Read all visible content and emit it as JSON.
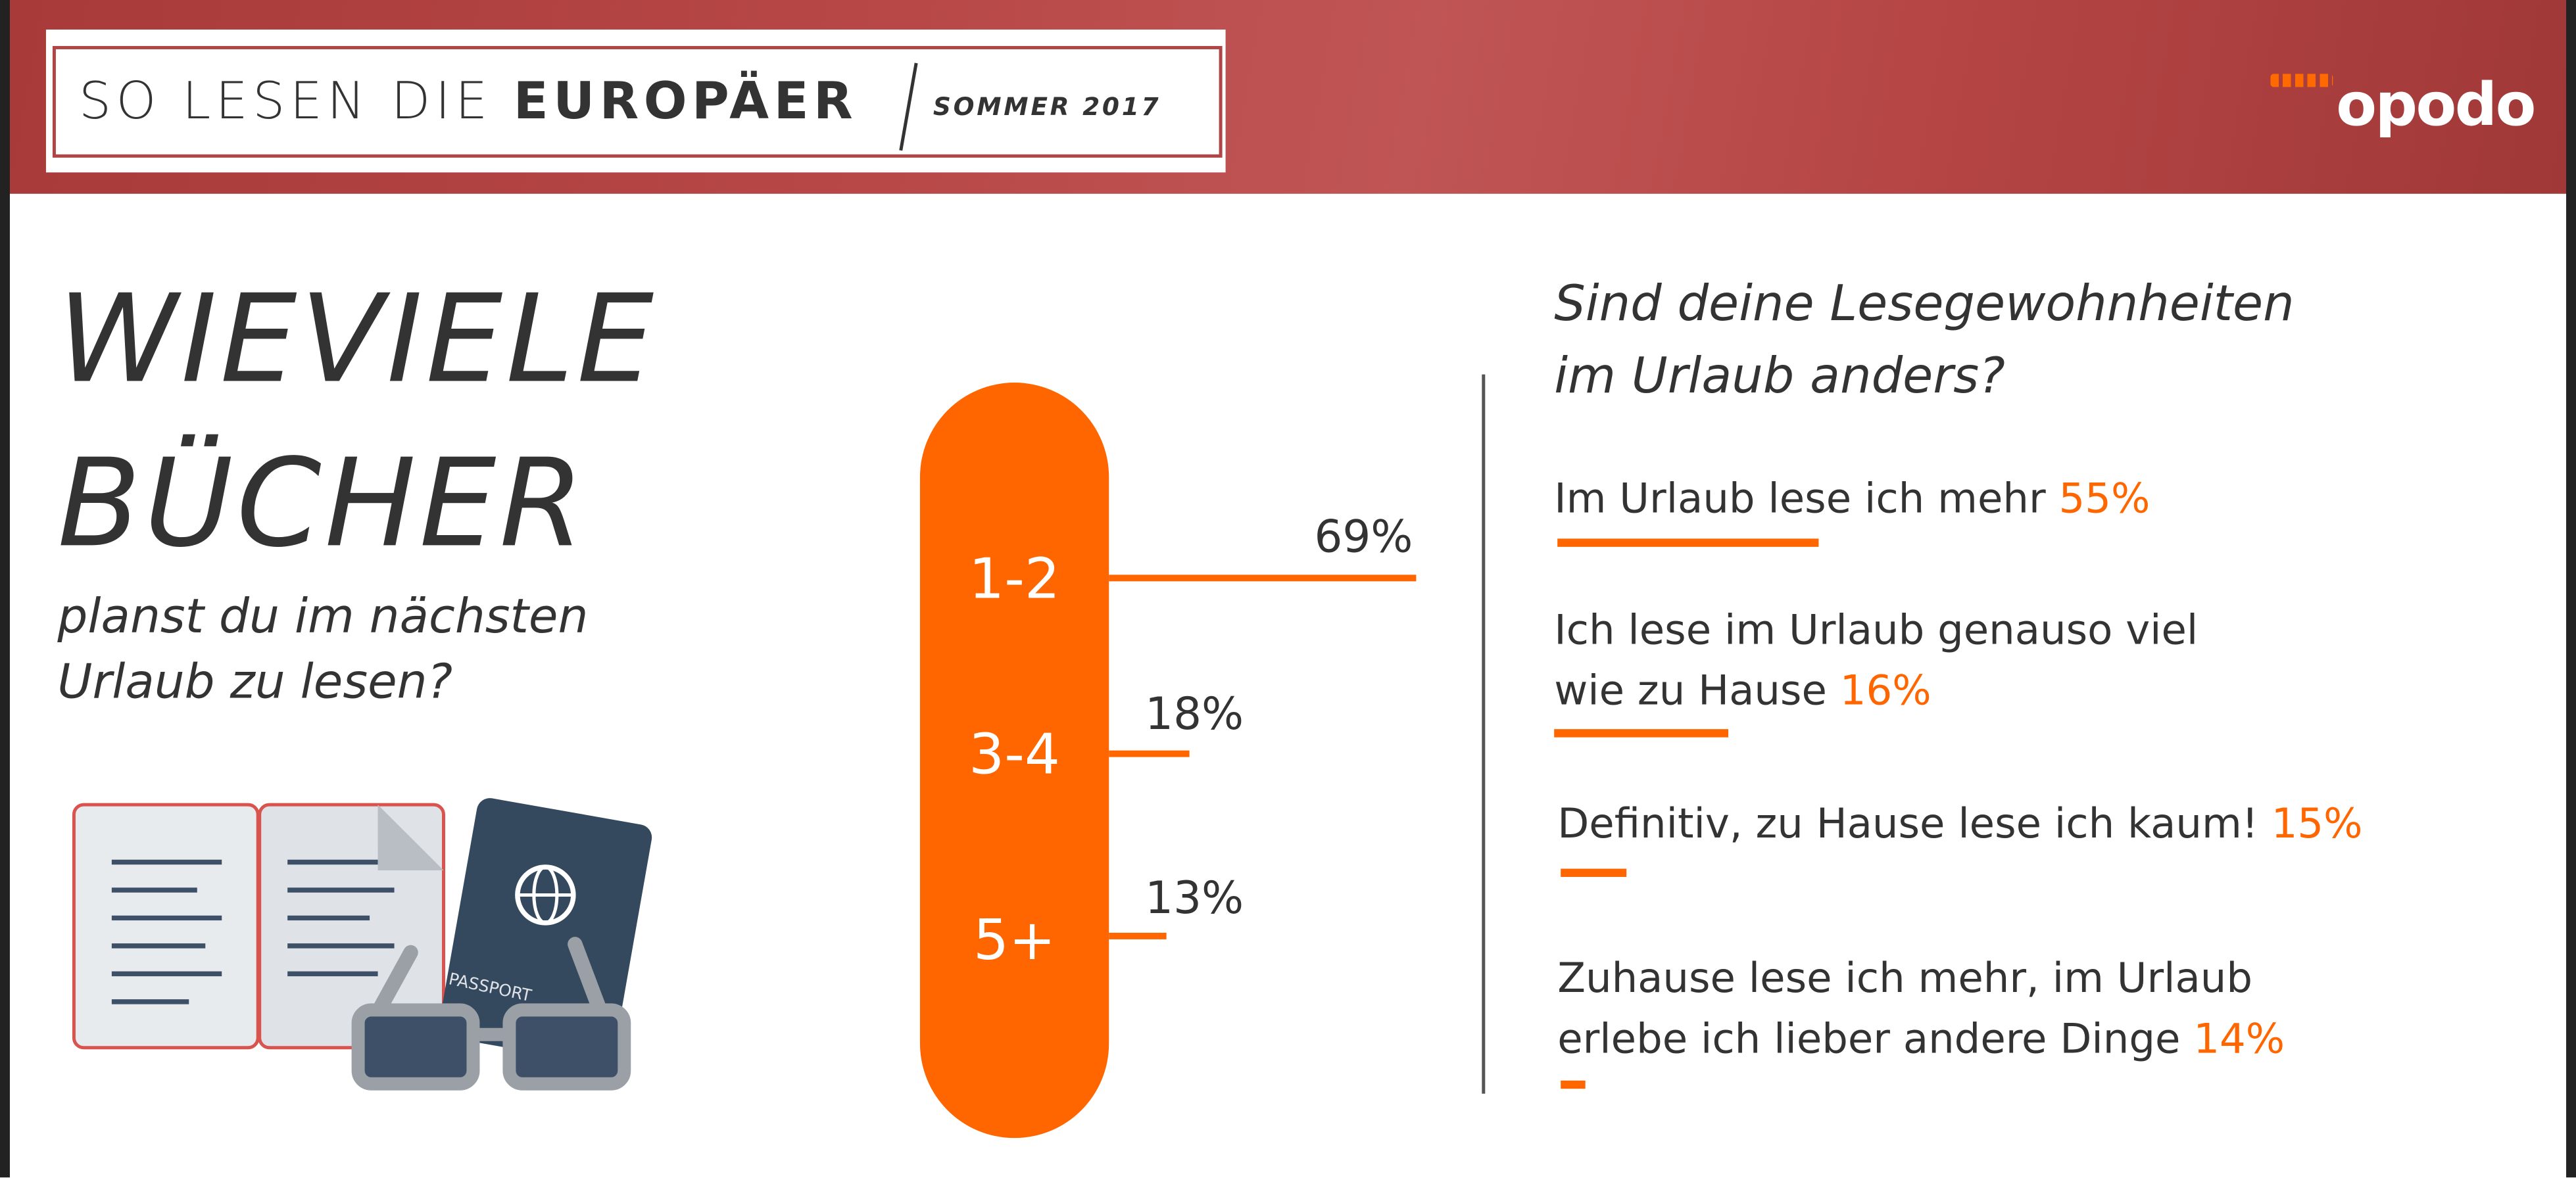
{
  "header": {
    "title_light": "SO LESEN DIE ",
    "title_bold": "EUROPÄER",
    "subtitle": "SOMMER 2017",
    "logo_text": "opodo"
  },
  "left": {
    "heading_line1": "WIEVIELE",
    "heading_line2": "BÜCHER",
    "sub_line1": "planst du im nächsten",
    "sub_line2": "Urlaub zu lesen?"
  },
  "right": {
    "question_line1": "Sind deine Lesegewohnheiten",
    "question_line2": "im Urlaub anders?"
  },
  "colors": {
    "accent": "#ff6600",
    "header": "#b84848",
    "text": "#333333"
  },
  "illustration": {
    "passport_label": "PASSPORT",
    "icons": [
      "open-book-icon",
      "passport-icon",
      "glasses-icon"
    ]
  },
  "chart_data": [
    {
      "type": "bar",
      "orientation": "horizontal",
      "categories": [
        "1-2",
        "3-4",
        "5+"
      ],
      "values": [
        69,
        18,
        13
      ],
      "labels": [
        "69%",
        "18%",
        "13%"
      ]
    },
    {
      "type": "bar",
      "orientation": "horizontal",
      "categories": [
        [
          "Im Urlaub lese ich mehr"
        ],
        [
          "Ich lese im Urlaub genauso viel",
          "wie zu Hause"
        ],
        [
          "Definitiv, zu Hause lese ich kaum!"
        ],
        [
          "Zuhause lese ich mehr, im Urlaub",
          "erlebe ich lieber andere Dinge"
        ]
      ],
      "values": [
        55,
        16,
        15,
        14
      ],
      "labels": [
        "55%",
        "16%",
        "15%",
        "14%"
      ]
    }
  ]
}
